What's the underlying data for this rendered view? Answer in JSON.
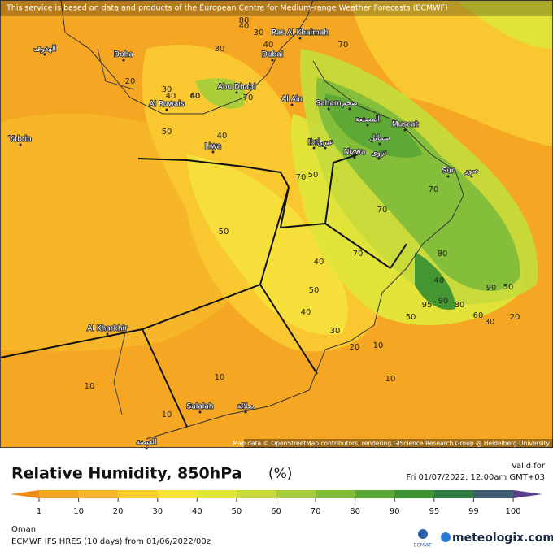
{
  "header": {
    "notice": "This service is based on data and products of the European Centre for Medium-range Weather Forecasts (ECMWF)"
  },
  "map": {
    "places": [
      "الهفوف",
      "Doha",
      "Abu Dhabi",
      "Dubai",
      "Ras Al Khaimah",
      "Al Ain",
      "Al Ruwais",
      "Liwa",
      "Yabrin",
      "Saham",
      "صحم",
      "المصنعة",
      "Muscat",
      "سمائل",
      "Ibri",
      "عبري",
      "Nizwa",
      "نزوى",
      "Sur",
      "صور",
      "Al Kharkhir",
      "Salalah",
      "صلالة",
      "الغيضة"
    ],
    "contour_labels": [
      40,
      30,
      30,
      40,
      40,
      70,
      20,
      30,
      40,
      60,
      50,
      70,
      40,
      50,
      50,
      80,
      70,
      70,
      50,
      70,
      40,
      70,
      40,
      50,
      40,
      80,
      90,
      95,
      90,
      80,
      60,
      50,
      30,
      30,
      20,
      10,
      20,
      10,
      10,
      10,
      10
    ],
    "attribution": "Map data © OpenStreetMap contributors, rendering GIScience Research Group @ Heidelberg University"
  },
  "legend": {
    "title": "Relative Humidity, 850hPa",
    "unit": "(%)",
    "valid_label": "Valid for",
    "valid_time": "Fri 01/07/2022, 12:00am GMT+03",
    "ticks": [
      1,
      10,
      20,
      30,
      40,
      50,
      60,
      70,
      80,
      90,
      95,
      99,
      100
    ],
    "colors": [
      "#f08c1a",
      "#f5a623",
      "#f7b52b",
      "#f9c932",
      "#f6e03c",
      "#e0e53a",
      "#c6da3b",
      "#a6cd3b",
      "#82bd3a",
      "#5ca836",
      "#3d9231",
      "#2f7a40",
      "#3d5c70",
      "#5b3f8c"
    ]
  },
  "footer": {
    "region": "Oman",
    "model": "ECMWF IFS HRES (10 days) from 01/06/2022/00z",
    "logo_small": "ECMWF",
    "brand": "meteologix.com"
  }
}
